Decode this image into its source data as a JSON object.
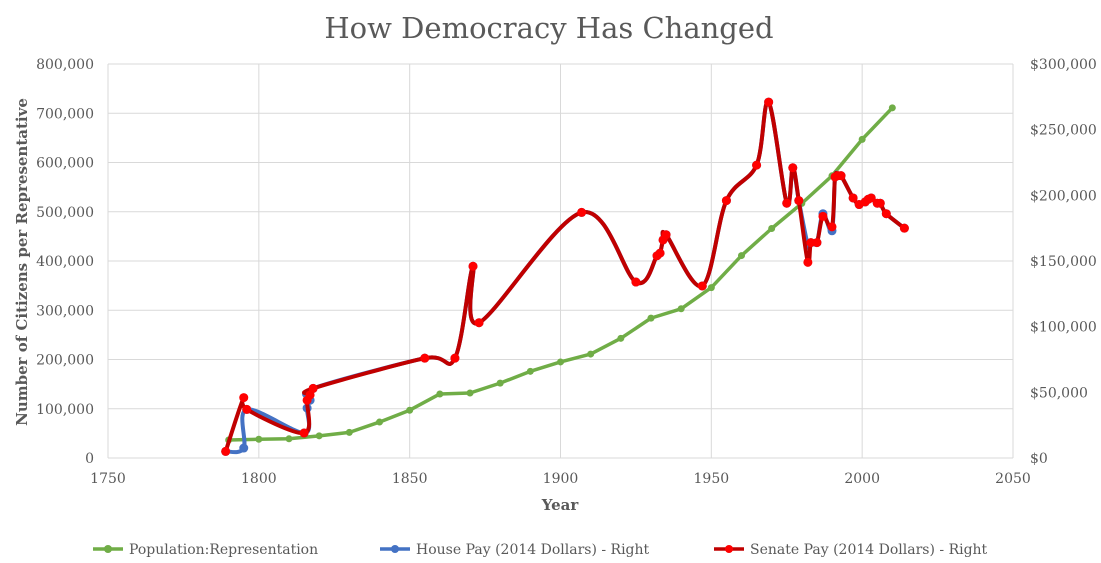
{
  "chart_data": {
    "type": "line",
    "title": "How Democracy Has Changed",
    "xlabel": "Year",
    "ylabel": "Number of Citizens per Representative",
    "xlim": [
      1750,
      2050
    ],
    "xticks": [
      1750,
      1800,
      1850,
      1900,
      1950,
      2000,
      2050
    ],
    "ylim": [
      0,
      800000
    ],
    "yticks": [
      "0",
      "100,000",
      "200,000",
      "300,000",
      "400,000",
      "500,000",
      "600,000",
      "700,000",
      "800,000"
    ],
    "y2lim": [
      0,
      300000
    ],
    "y2ticks": [
      "$0",
      "$50,000",
      "$100,000",
      "$150,000",
      "$200,000",
      "$250,000",
      "$300,000"
    ],
    "grid": true,
    "legend_position": "bottom",
    "series": [
      {
        "name": "Population:Representation",
        "axis": "left",
        "color": "#70ad47",
        "smooth": false,
        "x": [
          1790,
          1800,
          1810,
          1820,
          1830,
          1840,
          1850,
          1860,
          1870,
          1880,
          1890,
          1900,
          1910,
          1920,
          1930,
          1940,
          1950,
          1960,
          1970,
          1980,
          1990,
          2000,
          2010
        ],
        "y": [
          36500,
          38000,
          39000,
          45000,
          52000,
          73000,
          97000,
          130000,
          132000,
          152000,
          176000,
          195000,
          211000,
          243000,
          284000,
          303000,
          346000,
          411000,
          466000,
          517000,
          573000,
          647000,
          711000
        ]
      },
      {
        "name": "House Pay (2014 Dollars) - Right",
        "axis": "right",
        "color": "#4472c4",
        "smooth": true,
        "x": [
          1789,
          1795,
          1796,
          1815,
          1816,
          1817,
          1818,
          1855,
          1865,
          1871,
          1873,
          1907,
          1925,
          1932,
          1933,
          1934,
          1935,
          1947,
          1955,
          1965,
          1969,
          1975,
          1977,
          1979,
          1982,
          1983,
          1985,
          1987,
          1990,
          1991,
          1992,
          1993,
          1997,
          1999,
          2001,
          2002,
          2003,
          2005,
          2006,
          2008,
          2014
        ],
        "y": [
          5000,
          7600,
          37000,
          19000,
          38000,
          44000,
          53000,
          76000,
          76000,
          146000,
          103000,
          187000,
          134000,
          154000,
          156000,
          166000,
          170000,
          131000,
          196000,
          223000,
          271000,
          194000,
          221000,
          196000,
          162000,
          164000,
          164000,
          186000,
          173000,
          214000,
          215000,
          215000,
          198000,
          193000,
          195000,
          197000,
          198000,
          194000,
          194000,
          186000,
          175000
        ]
      },
      {
        "name": "Senate Pay (2014 Dollars) - Right",
        "axis": "right",
        "color": "#c00000",
        "smooth": true,
        "x": [
          1789,
          1795,
          1796,
          1815,
          1816,
          1817,
          1818,
          1855,
          1865,
          1871,
          1873,
          1907,
          1925,
          1932,
          1933,
          1934,
          1935,
          1947,
          1955,
          1965,
          1969,
          1975,
          1977,
          1979,
          1982,
          1983,
          1985,
          1987,
          1990,
          1991,
          1992,
          1993,
          1997,
          1999,
          2001,
          2002,
          2003,
          2005,
          2006,
          2008,
          2014
        ],
        "y": [
          5000,
          46000,
          37000,
          19000,
          44000,
          48000,
          53000,
          76000,
          76000,
          146000,
          103000,
          187000,
          134000,
          154000,
          156000,
          166000,
          170000,
          131000,
          196000,
          223000,
          271000,
          194000,
          221000,
          196000,
          149000,
          164000,
          164000,
          184000,
          176000,
          214000,
          215000,
          215000,
          198000,
          193000,
          195000,
          197000,
          198000,
          194000,
          194000,
          186000,
          175000
        ]
      }
    ]
  }
}
